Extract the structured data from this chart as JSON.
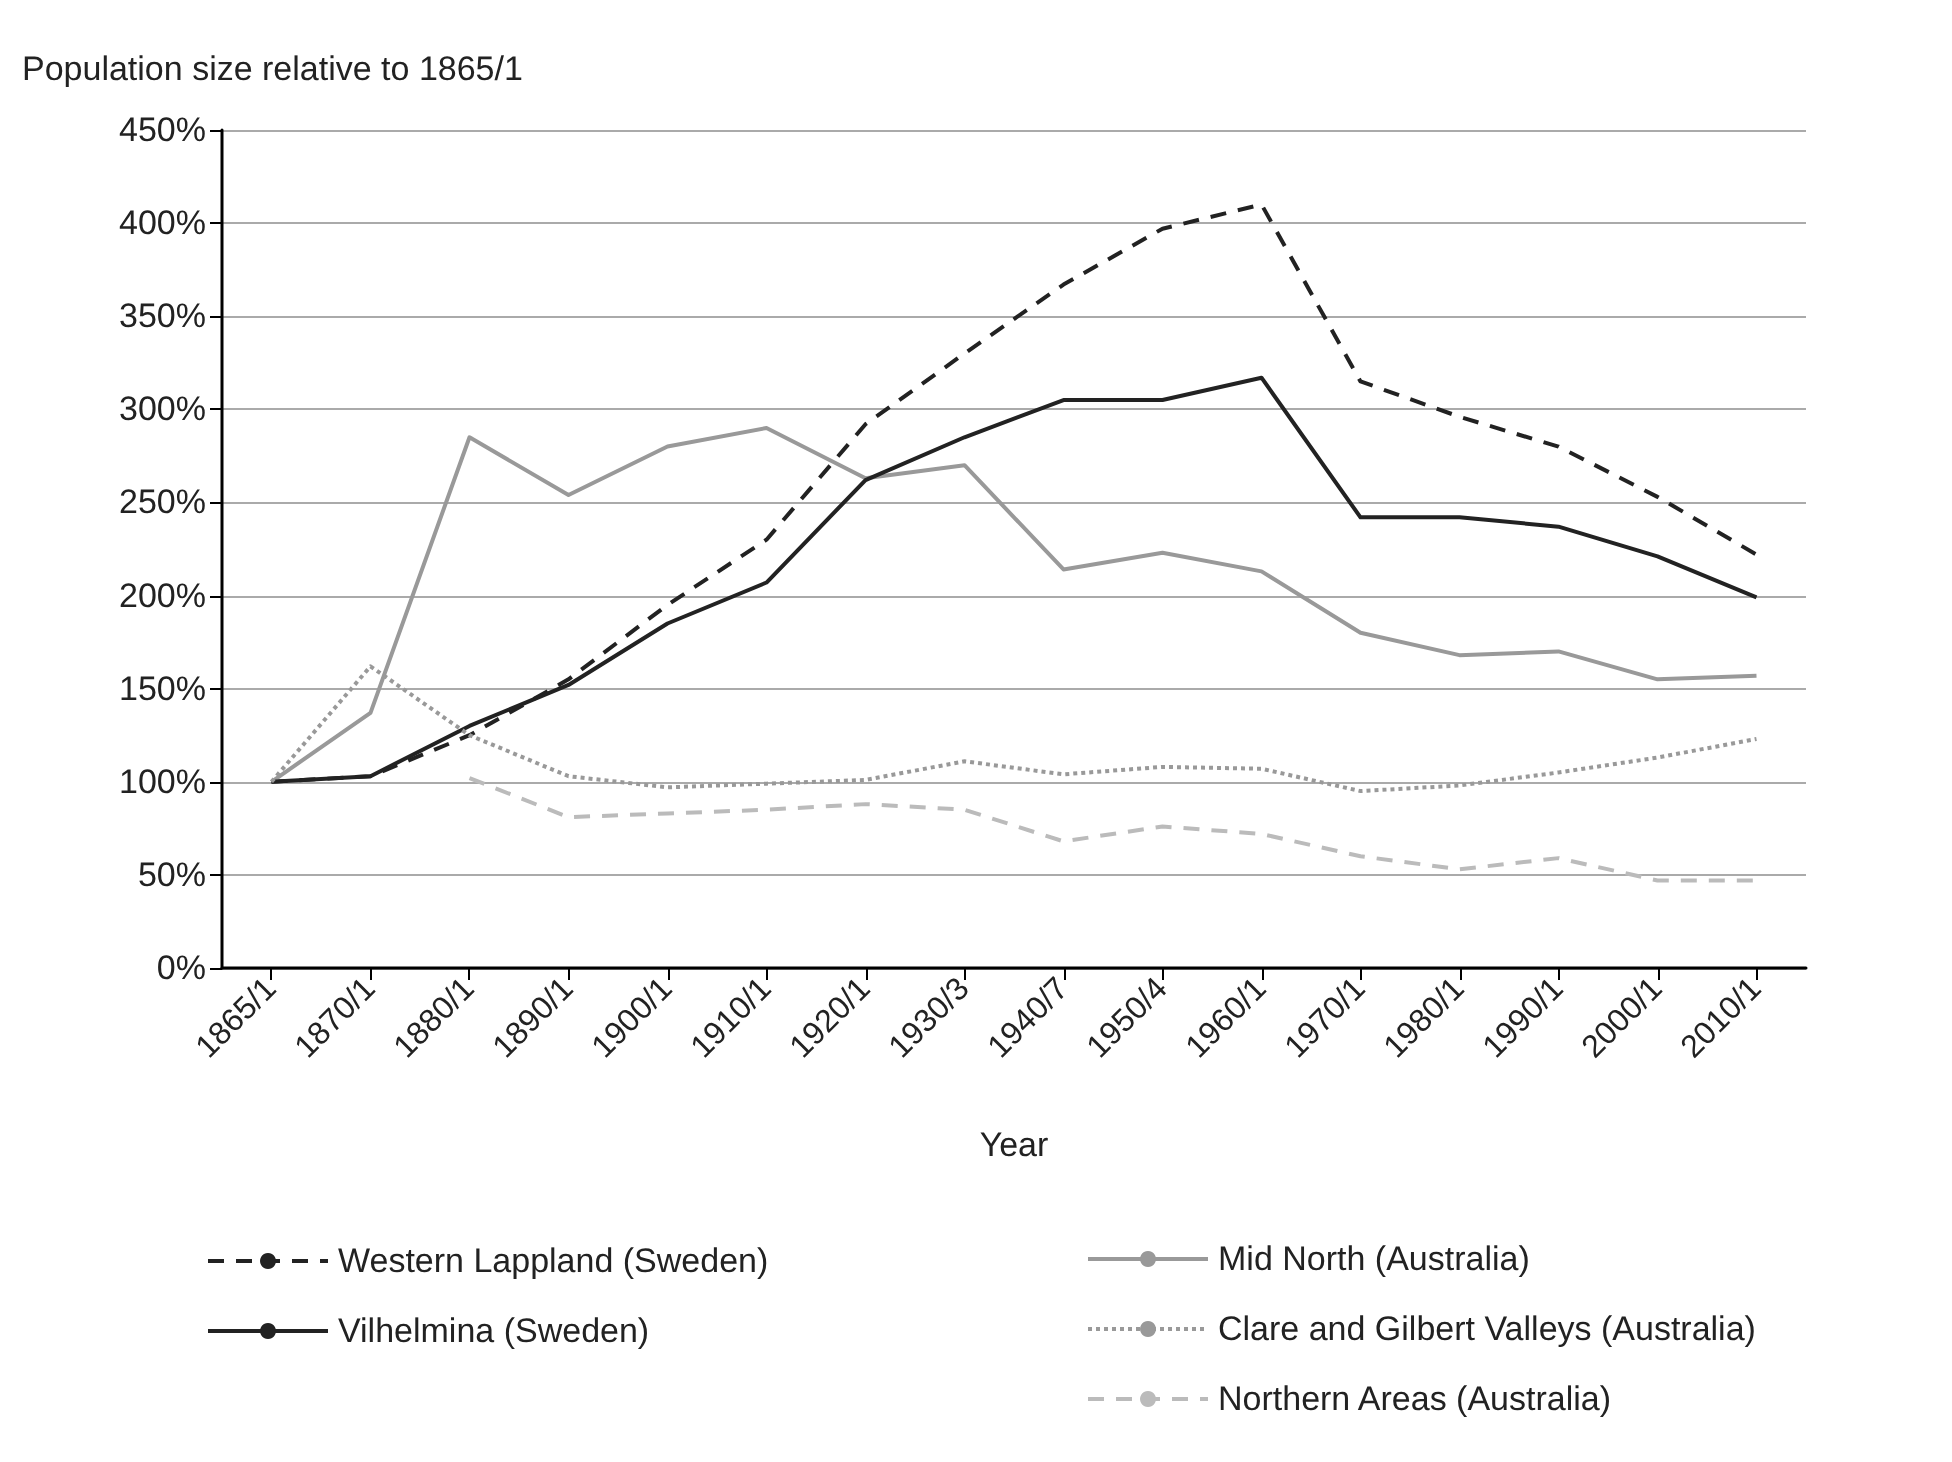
{
  "chart_data": {
    "type": "line",
    "ylabel": "Population size relative to 1865/1",
    "xlabel": "Year",
    "categories": [
      "1865/1",
      "1870/1",
      "1880/1",
      "1890/1",
      "1900/1",
      "1910/1",
      "1920/1",
      "1930/3",
      "1940/7",
      "1950/4",
      "1960/1",
      "1970/1",
      "1980/1",
      "1990/1",
      "2000/1",
      "2010/1"
    ],
    "series": [
      {
        "name": "Western Lappland (Sweden)",
        "color": "#222222",
        "line_style": "dashed",
        "values": [
          100,
          103,
          125,
          155,
          195,
          230,
          292,
          330,
          367,
          397,
          410,
          315,
          296,
          280,
          253,
          222
        ]
      },
      {
        "name": "Mid North (Australia)",
        "color": "#999999",
        "line_style": "solid",
        "values": [
          100,
          137,
          285,
          254,
          280,
          290,
          263,
          270,
          214,
          223,
          213,
          180,
          168,
          170,
          155,
          157
        ]
      },
      {
        "name": "Vilhelmina (Sweden)",
        "color": "#222222",
        "line_style": "solid",
        "values": [
          100,
          103,
          130,
          152,
          185,
          207,
          262,
          285,
          305,
          305,
          317,
          242,
          242,
          237,
          221,
          199
        ]
      },
      {
        "name": "Clare and Gilbert Valleys (Australia)",
        "color": "#999999",
        "line_style": "dotted",
        "values": [
          100,
          162,
          125,
          103,
          97,
          99,
          101,
          111,
          104,
          108,
          107,
          95,
          98,
          105,
          113,
          123
        ]
      },
      {
        "name": "Northern Areas (Australia)",
        "color": "#bbbbbb",
        "line_style": "dashed",
        "values": [
          null,
          null,
          102,
          81,
          83,
          85,
          88,
          85,
          68,
          76,
          72,
          60,
          53,
          59,
          47,
          47
        ]
      }
    ],
    "ylim": [
      0,
      450
    ],
    "yticks": [
      {
        "value": 0,
        "label": "0%"
      },
      {
        "value": 50,
        "label": "50%"
      },
      {
        "value": 100,
        "label": "100%"
      },
      {
        "value": 150,
        "label": "150%"
      },
      {
        "value": 200,
        "label": "200%"
      },
      {
        "value": 250,
        "label": "250%"
      },
      {
        "value": 300,
        "label": "300%"
      },
      {
        "value": 350,
        "label": "350%"
      },
      {
        "value": 400,
        "label": "400%"
      },
      {
        "value": 450,
        "label": "450%"
      }
    ],
    "grid": "y",
    "legend": "bottom",
    "marker": "none"
  }
}
